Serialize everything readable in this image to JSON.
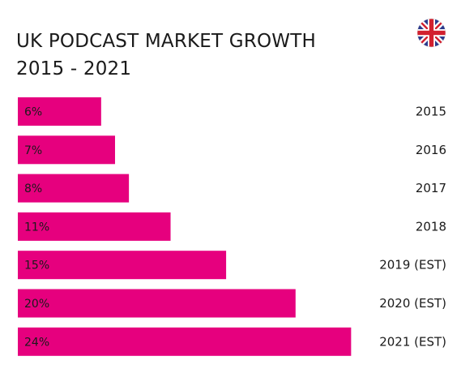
{
  "title_lines": [
    "UK PODCAST MARKET GROWTH",
    "2015 - 2021"
  ],
  "flag_icon": "uk-flag-icon",
  "accent_color": "#e6007e",
  "chart_data": {
    "type": "bar",
    "orientation": "horizontal",
    "title": "UK PODCAST MARKET GROWTH 2015 - 2021",
    "categories": [
      "2015",
      "2016",
      "2017",
      "2018",
      "2019 (EST)",
      "2020 (EST)",
      "2021 (EST)"
    ],
    "values": [
      6,
      7,
      8,
      11,
      15,
      20,
      24
    ],
    "value_labels": [
      "6%",
      "7%",
      "8%",
      "11%",
      "15%",
      "20%",
      "24%"
    ],
    "unit": "%",
    "xlim": [
      0,
      24.5
    ],
    "grid": false,
    "legend": "none"
  }
}
